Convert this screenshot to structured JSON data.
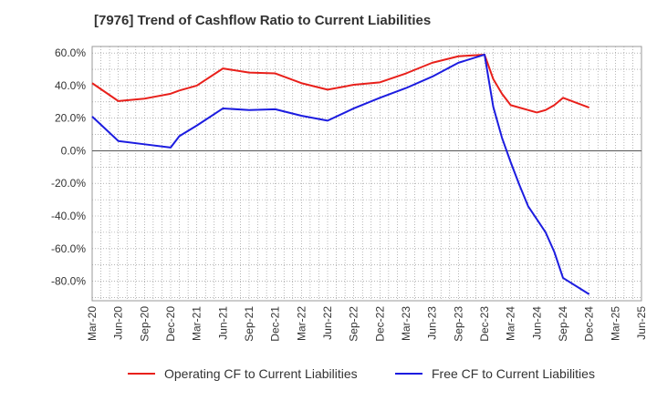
{
  "chart_data": {
    "type": "line",
    "title": "[7976]  Trend of Cashflow Ratio to Current Liabilities",
    "xlabel": "",
    "ylabel": "",
    "ylim": [
      -92,
      64
    ],
    "y_ticks": [
      60,
      40,
      20,
      0,
      -20,
      -40,
      -60,
      -80
    ],
    "y_tick_labels": [
      "60.0%",
      "40.0%",
      "20.0%",
      "0.0%",
      "-20.0%",
      "-40.0%",
      "-60.0%",
      "-80.0%"
    ],
    "x_tick_labels": [
      "Mar-20",
      "Jun-20",
      "Sep-20",
      "Dec-20",
      "Mar-21",
      "Jun-21",
      "Sep-21",
      "Dec-21",
      "Mar-22",
      "Jun-22",
      "Sep-22",
      "Dec-22",
      "Mar-23",
      "Jun-23",
      "Sep-23",
      "Dec-23",
      "Mar-24",
      "Jun-24",
      "Sep-24",
      "Dec-24",
      "Mar-25",
      "Jun-25"
    ],
    "grid": true,
    "legend_position": "bottom",
    "series": [
      {
        "name": "Operating CF to Current Liabilities",
        "color": "#e8201b",
        "x": [
          "Mar-20",
          "Jun-20",
          "Sep-20",
          "Oct-20",
          "Dec-20",
          "Jan-21",
          "Mar-21",
          "Jun-21",
          "Sep-21",
          "Dec-21",
          "Mar-22",
          "Jun-22",
          "Sep-22",
          "Dec-22",
          "Mar-23",
          "Jun-23",
          "Sep-23",
          "Dec-23",
          "Jan-24",
          "Feb-24",
          "Mar-24",
          "Jun-24",
          "Jul-24",
          "Aug-24",
          "Sep-24",
          "Dec-24"
        ],
        "values": [
          41.5,
          30.5,
          32,
          33,
          35,
          37,
          40,
          50.5,
          48,
          47.5,
          41.5,
          37.5,
          40.5,
          42,
          47.5,
          54,
          58,
          59,
          44,
          35,
          28,
          23.5,
          25,
          28,
          32.5,
          26.5
        ]
      },
      {
        "name": "Free CF to Current Liabilities",
        "color": "#1c1ce0",
        "x": [
          "Mar-20",
          "Jun-20",
          "Sep-20",
          "Dec-20",
          "Jan-21",
          "Mar-21",
          "Jun-21",
          "Sep-21",
          "Dec-21",
          "Mar-22",
          "Jun-22",
          "Sep-22",
          "Dec-22",
          "Mar-23",
          "Jun-23",
          "Sep-23",
          "Dec-23",
          "Jan-24",
          "Feb-24",
          "Mar-24",
          "Apr-24",
          "May-24",
          "Jun-24",
          "Jul-24",
          "Aug-24",
          "Sep-24",
          "Dec-24"
        ],
        "values": [
          21,
          6,
          4,
          2,
          9,
          15.5,
          26,
          25,
          25.5,
          21.5,
          18.5,
          26,
          32.5,
          38.5,
          45.5,
          54,
          59,
          27,
          8,
          -7,
          -21,
          -34,
          -42,
          -50,
          -62,
          -78,
          -88
        ]
      }
    ]
  }
}
